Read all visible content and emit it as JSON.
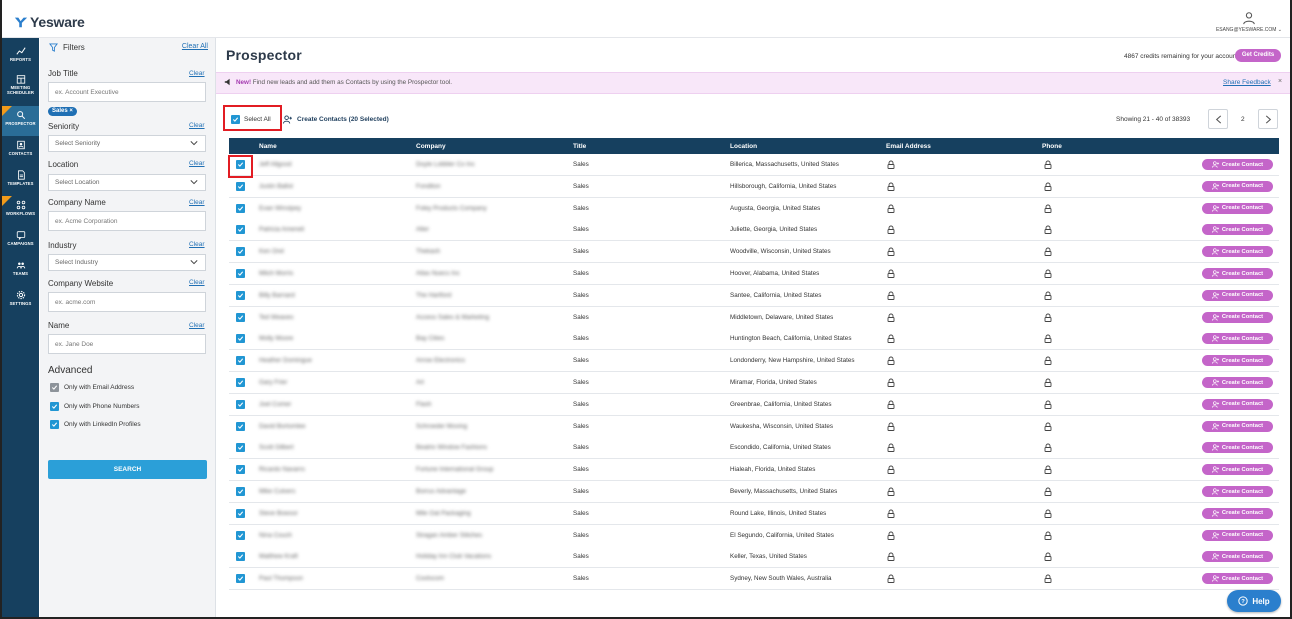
{
  "app": {
    "name": "Yesware",
    "user_email": "ESANG@YESWARE.COM"
  },
  "nav": [
    {
      "label": "REPORTS",
      "icon": "chart-icon"
    },
    {
      "label": "MEETING SCHEDULER",
      "icon": "calendar-icon"
    },
    {
      "label": "PROSPECTOR",
      "icon": "search-icon",
      "active": true
    },
    {
      "label": "CONTACTS",
      "icon": "contacts-icon"
    },
    {
      "label": "TEMPLATES",
      "icon": "document-icon"
    },
    {
      "label": "WORKFLOWS",
      "icon": "workflow-icon"
    },
    {
      "label": "CAMPAIGNS",
      "icon": "campaign-icon"
    },
    {
      "label": "TEAMS",
      "icon": "team-icon"
    },
    {
      "label": "SETTINGS",
      "icon": "gear-icon"
    }
  ],
  "filters": {
    "title": "Filters",
    "clear_all": "Clear All",
    "clear": "Clear",
    "job_title": {
      "label": "Job Title",
      "placeholder": "ex. Account Executive",
      "chip": "Sales"
    },
    "seniority": {
      "label": "Seniority",
      "value": "Select Seniority"
    },
    "location": {
      "label": "Location",
      "value": "Select Location"
    },
    "company_name": {
      "label": "Company Name",
      "placeholder": "ex. Acme Corporation"
    },
    "industry": {
      "label": "Industry",
      "value": "Select Industry"
    },
    "company_website": {
      "label": "Company Website",
      "placeholder": "ex. acme.com"
    },
    "name": {
      "label": "Name",
      "placeholder": "ex. Jane Doe"
    },
    "advanced": {
      "title": "Advanced",
      "options": [
        {
          "label": "Only with Email Address",
          "checked": false
        },
        {
          "label": "Only with Phone Numbers",
          "checked": true
        },
        {
          "label": "Only with LinkedIn Profiles",
          "checked": true
        }
      ]
    },
    "search_label": "SEARCH"
  },
  "main": {
    "title": "Prospector",
    "credits_text": "4867 credits remaining for your account",
    "get_credits": "Get Credits",
    "banner": {
      "new_label": "New!",
      "text": "Find new leads and add them as Contacts by using the Prospector tool.",
      "share_feedback": "Share Feedback",
      "close": "×"
    },
    "select_all": "Select All",
    "create_contacts": "Create Contacts (20 Selected)",
    "showing": "Showing 21 - 40 of 38393",
    "page": "2",
    "columns": [
      "Name",
      "Company",
      "Title",
      "Location",
      "Email Address",
      "Phone"
    ],
    "create_contact_label": "Create Contact",
    "rows": [
      {
        "name": "Jeff Allgood",
        "company": "Doyle Lobbler Co Inc",
        "title": "Sales",
        "location": "Billerica, Massachusetts, United States"
      },
      {
        "name": "Justin Ballot",
        "company": "Fonditon",
        "title": "Sales",
        "location": "Hillsborough, California, United States"
      },
      {
        "name": "Evan Winstpey",
        "company": "Foley Products Company",
        "title": "Sales",
        "location": "Augusta, Georgia, United States"
      },
      {
        "name": "Patricia Ameneli",
        "company": "Alter",
        "title": "Sales",
        "location": "Juliette, Georgia, United States"
      },
      {
        "name": "Ken Orel",
        "company": "Thekash",
        "title": "Sales",
        "location": "Woodville, Wisconsin, United States"
      },
      {
        "name": "Mitch Morris",
        "company": "Atlas Nuecs Inc",
        "title": "Sales",
        "location": "Hoover, Alabama, United States"
      },
      {
        "name": "Billy Barnard",
        "company": "The Hartford",
        "title": "Sales",
        "location": "Santee, California, United States"
      },
      {
        "name": "Ted Weaves",
        "company": "Access Sales & Marketing",
        "title": "Sales",
        "location": "Middletown, Delaware, United States"
      },
      {
        "name": "Molly Moore",
        "company": "Bay Cities",
        "title": "Sales",
        "location": "Huntington Beach, California, United States"
      },
      {
        "name": "Heather Domingue",
        "company": "Arrow Electronics",
        "title": "Sales",
        "location": "Londonderry, New Hampshire, United States"
      },
      {
        "name": "Gary Frier",
        "company": "Art",
        "title": "Sales",
        "location": "Miramar, Florida, United States"
      },
      {
        "name": "Joel Comer",
        "company": "Flash",
        "title": "Sales",
        "location": "Greenbrae, California, United States"
      },
      {
        "name": "David Bortomlee",
        "company": "Schroeder Moving",
        "title": "Sales",
        "location": "Waukesha, Wisconsin, United States"
      },
      {
        "name": "Scott Gilbert",
        "company": "Beatrix Window Fashions",
        "title": "Sales",
        "location": "Escondido, California, United States"
      },
      {
        "name": "Ricardo Navarro",
        "company": "Fortune International Group",
        "title": "Sales",
        "location": "Hialeah, Florida, United States"
      },
      {
        "name": "Mike Culvers",
        "company": "Borrus Advantage",
        "title": "Sales",
        "location": "Beverly, Massachusetts, United States"
      },
      {
        "name": "Steve Bowsor",
        "company": "Mile Oat Packaging",
        "title": "Sales",
        "location": "Round Lake, Illinois, United States"
      },
      {
        "name": "Nina Couch",
        "company": "Stragan Amber Stitches",
        "title": "Sales",
        "location": "El Segundo, California, United States"
      },
      {
        "name": "Matthew Kraft",
        "company": "Holiday Inn Club Vacations",
        "title": "Sales",
        "location": "Keller, Texas, United States"
      },
      {
        "name": "Paul Thompson",
        "company": "Coolscom",
        "title": "Sales",
        "location": "Sydney, New South Wales, Australia"
      }
    ]
  },
  "help_label": "Help",
  "colors": {
    "nav_bg": "#16405f",
    "accent_pink": "#c465c9",
    "accent_blue": "#2196d3",
    "highlight_red": "#e21c23"
  }
}
